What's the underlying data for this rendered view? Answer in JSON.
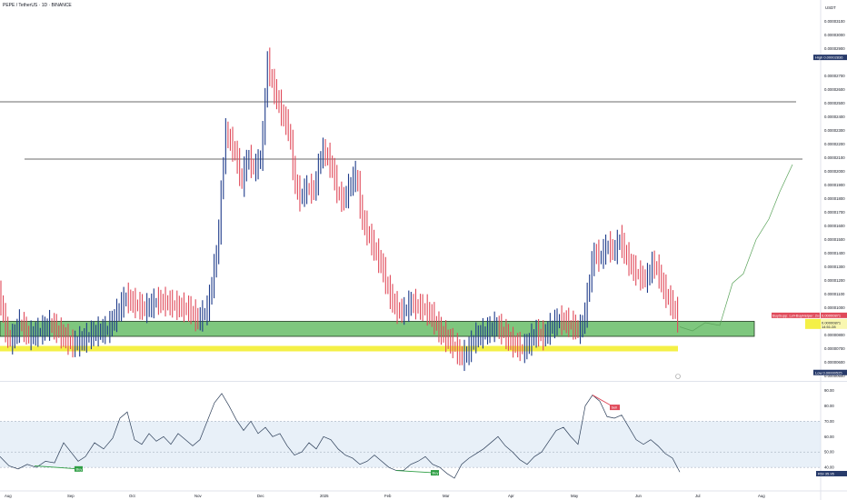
{
  "header": {
    "title": "PEPE / TetherUS · 1D · BINANCE"
  },
  "chart_data": [
    {
      "type": "candlestick",
      "currency": "USDT",
      "y_ticks": [
        "0.00003100",
        "0.00003000",
        "0.00002900",
        "0.00002700",
        "0.00002600",
        "0.00002500",
        "0.00002400",
        "0.00002300",
        "0.00002200",
        "0.00002100",
        "0.00002000",
        "0.00001900",
        "0.00001800",
        "0.00001700",
        "0.00001600",
        "0.00001500",
        "0.00001400",
        "0.00001300",
        "0.00001200",
        "0.00001100",
        "0.00001000",
        "0.00000900",
        "0.00000800",
        "0.00000700",
        "0.00000600",
        "0.00000500"
      ],
      "ylim": [
        4.7e-06,
        3.23e-05
      ],
      "x_ticks": [
        "Aug",
        "Sep",
        "Oct",
        "Nov",
        "Dec",
        "2025",
        "Feb",
        "Mar",
        "Apr",
        "May",
        "Jun",
        "Jul",
        "Aug"
      ],
      "markers": {
        "high": {
          "label": "High",
          "value": "0.00002836"
        },
        "low": {
          "label": "Low",
          "value": "0.00000525"
        },
        "current": {
          "value": "0.00000871"
        },
        "indicator_label": "BuySupp: Lvl+BuyHelper: 2x+Sentb",
        "countdown": "14:51:28"
      },
      "horizontal_levels": [
        2.51e-05,
        2.09e-05
      ],
      "zones": [
        {
          "name": "green-support-zone",
          "from": 7.9e-06,
          "to": 9e-06,
          "color": "#7ec77e"
        },
        {
          "name": "yellow-zone",
          "from": 6.8e-06,
          "to": 7.2e-06,
          "color": "#f4f046"
        }
      ],
      "price_path": [
        [
          0,
          1.08e-05
        ],
        [
          6,
          8.3e-06
        ],
        [
          12,
          7.4e-06
        ],
        [
          22,
          8.8e-06
        ],
        [
          32,
          7.8e-06
        ],
        [
          44,
          8.2e-06
        ],
        [
          56,
          8.7e-06
        ],
        [
          68,
          7.9e-06
        ],
        [
          80,
          7.2e-06
        ],
        [
          92,
          7.6e-06
        ],
        [
          104,
          8.1e-06
        ],
        [
          118,
          8.3e-06
        ],
        [
          128,
          9.4e-06
        ],
        [
          138,
          1.07e-05
        ],
        [
          148,
          1.02e-05
        ],
        [
          160,
          9.8e-06
        ],
        [
          172,
          1.04e-05
        ],
        [
          184,
          1.03e-05
        ],
        [
          196,
          1e-05
        ],
        [
          208,
          9.8e-06
        ],
        [
          218,
          9e-06
        ],
        [
          228,
          9.8e-06
        ],
        [
          234,
          1.2e-05
        ],
        [
          240,
          1.48e-05
        ],
        [
          244,
          1.9e-05
        ],
        [
          248,
          2.28e-05
        ],
        [
          254,
          2.2e-05
        ],
        [
          260,
          2.1e-05
        ],
        [
          266,
          1.9e-05
        ],
        [
          272,
          2.1e-05
        ],
        [
          280,
          2e-05
        ],
        [
          288,
          2.12e-05
        ],
        [
          294,
          2.8e-05
        ],
        [
          300,
          2.62e-05
        ],
        [
          306,
          2.5e-05
        ],
        [
          312,
          2.38e-05
        ],
        [
          318,
          2.3e-05
        ],
        [
          324,
          1.92e-05
        ],
        [
          330,
          1.8e-05
        ],
        [
          338,
          1.87e-05
        ],
        [
          346,
          1.85e-05
        ],
        [
          354,
          2.15e-05
        ],
        [
          360,
          2.1e-05
        ],
        [
          366,
          2e-05
        ],
        [
          372,
          1.82e-05
        ],
        [
          378,
          1.78e-05
        ],
        [
          386,
          1.9e-05
        ],
        [
          392,
          1.98e-05
        ],
        [
          398,
          1.65e-05
        ],
        [
          404,
          1.55e-05
        ],
        [
          412,
          1.42e-05
        ],
        [
          420,
          1.3e-05
        ],
        [
          428,
          1.1e-05
        ],
        [
          436,
          9.8e-06
        ],
        [
          444,
          9.6e-06
        ],
        [
          452,
          1.03e-05
        ],
        [
          460,
          1e-05
        ],
        [
          468,
          9.8e-06
        ],
        [
          476,
          9.2e-06
        ],
        [
          484,
          8.2e-06
        ],
        [
          492,
          7.6e-06
        ],
        [
          500,
          7.1e-06
        ],
        [
          508,
          6.3e-06
        ],
        [
          514,
          6.6e-06
        ],
        [
          522,
          7.7e-06
        ],
        [
          530,
          8e-06
        ],
        [
          538,
          8.3e-06
        ],
        [
          546,
          8.6e-06
        ],
        [
          554,
          8.1e-06
        ],
        [
          562,
          7.4e-06
        ],
        [
          570,
          7.1e-06
        ],
        [
          576,
          6.8e-06
        ],
        [
          582,
          7.4e-06
        ],
        [
          590,
          8.1e-06
        ],
        [
          598,
          7.8e-06
        ],
        [
          606,
          8.5e-06
        ],
        [
          614,
          9e-06
        ],
        [
          622,
          8.9e-06
        ],
        [
          630,
          8.6e-06
        ],
        [
          638,
          8.2e-06
        ],
        [
          644,
          9.5e-06
        ],
        [
          648,
          1.18e-05
        ],
        [
          654,
          1.4e-05
        ],
        [
          660,
          1.35e-05
        ],
        [
          668,
          1.45e-05
        ],
        [
          676,
          1.4e-05
        ],
        [
          682,
          1.5e-05
        ],
        [
          688,
          1.38e-05
        ],
        [
          696,
          1.28e-05
        ],
        [
          704,
          1.22e-05
        ],
        [
          712,
          1.2e-05
        ],
        [
          718,
          1.32e-05
        ],
        [
          724,
          1.26e-05
        ],
        [
          730,
          1.13e-05
        ],
        [
          736,
          1.05e-05
        ],
        [
          742,
          9.8e-06
        ],
        [
          748,
          8.7e-06
        ]
      ],
      "projection": [
        [
          748,
          8.6e-06
        ],
        [
          762,
          8.3e-06
        ],
        [
          776,
          8.9e-06
        ],
        [
          792,
          8.7e-06
        ],
        [
          806,
          1.18e-05
        ],
        [
          818,
          1.25e-05
        ],
        [
          832,
          1.5e-05
        ],
        [
          846,
          1.65e-05
        ],
        [
          858,
          1.85e-05
        ],
        [
          872,
          2.05e-05
        ]
      ]
    },
    {
      "type": "line",
      "name": "rsi-panel",
      "y_ticks": [
        "90.00",
        "80.00",
        "70.00",
        "60.00",
        "50.00",
        "40.00"
      ],
      "ylim": [
        33,
        95
      ],
      "band": [
        40,
        70
      ],
      "current": {
        "label": "RSI",
        "value": "35.95"
      },
      "buy_labels": [
        "Buy",
        "Buy"
      ],
      "sell_label": "Sell",
      "series": [
        [
          0,
          47
        ],
        [
          10,
          41
        ],
        [
          20,
          39
        ],
        [
          30,
          42
        ],
        [
          40,
          40
        ],
        [
          50,
          44
        ],
        [
          60,
          43
        ],
        [
          70,
          56
        ],
        [
          78,
          50
        ],
        [
          86,
          44
        ],
        [
          94,
          47
        ],
        [
          104,
          56
        ],
        [
          114,
          52
        ],
        [
          124,
          59
        ],
        [
          132,
          72
        ],
        [
          140,
          76
        ],
        [
          148,
          58
        ],
        [
          156,
          55
        ],
        [
          164,
          62
        ],
        [
          172,
          57
        ],
        [
          180,
          60
        ],
        [
          188,
          55
        ],
        [
          196,
          62
        ],
        [
          204,
          58
        ],
        [
          212,
          54
        ],
        [
          220,
          58
        ],
        [
          228,
          70
        ],
        [
          236,
          82
        ],
        [
          244,
          88
        ],
        [
          252,
          80
        ],
        [
          260,
          71
        ],
        [
          268,
          64
        ],
        [
          276,
          70
        ],
        [
          284,
          62
        ],
        [
          292,
          66
        ],
        [
          300,
          60
        ],
        [
          308,
          62
        ],
        [
          316,
          54
        ],
        [
          324,
          48
        ],
        [
          332,
          50
        ],
        [
          340,
          56
        ],
        [
          348,
          52
        ],
        [
          356,
          60
        ],
        [
          364,
          58
        ],
        [
          372,
          52
        ],
        [
          380,
          48
        ],
        [
          388,
          46
        ],
        [
          396,
          42
        ],
        [
          404,
          44
        ],
        [
          412,
          48
        ],
        [
          420,
          44
        ],
        [
          428,
          40
        ],
        [
          436,
          38
        ],
        [
          444,
          38
        ],
        [
          452,
          42
        ],
        [
          460,
          44
        ],
        [
          468,
          47
        ],
        [
          476,
          42
        ],
        [
          484,
          40
        ],
        [
          492,
          36
        ],
        [
          500,
          33
        ],
        [
          508,
          42
        ],
        [
          516,
          46
        ],
        [
          524,
          49
        ],
        [
          532,
          52
        ],
        [
          540,
          56
        ],
        [
          548,
          60
        ],
        [
          556,
          54
        ],
        [
          564,
          50
        ],
        [
          572,
          45
        ],
        [
          580,
          42
        ],
        [
          588,
          47
        ],
        [
          596,
          50
        ],
        [
          604,
          57
        ],
        [
          612,
          64
        ],
        [
          620,
          66
        ],
        [
          628,
          60
        ],
        [
          636,
          55
        ],
        [
          644,
          80
        ],
        [
          652,
          87
        ],
        [
          660,
          83
        ],
        [
          668,
          73
        ],
        [
          676,
          72
        ],
        [
          684,
          74
        ],
        [
          692,
          66
        ],
        [
          700,
          58
        ],
        [
          708,
          55
        ],
        [
          716,
          58
        ],
        [
          724,
          54
        ],
        [
          732,
          49
        ],
        [
          740,
          46
        ],
        [
          748,
          37
        ]
      ]
    }
  ],
  "colors": {
    "up": "#1e3b8a",
    "down": "#e04a5a",
    "accent": "#1848cc"
  }
}
